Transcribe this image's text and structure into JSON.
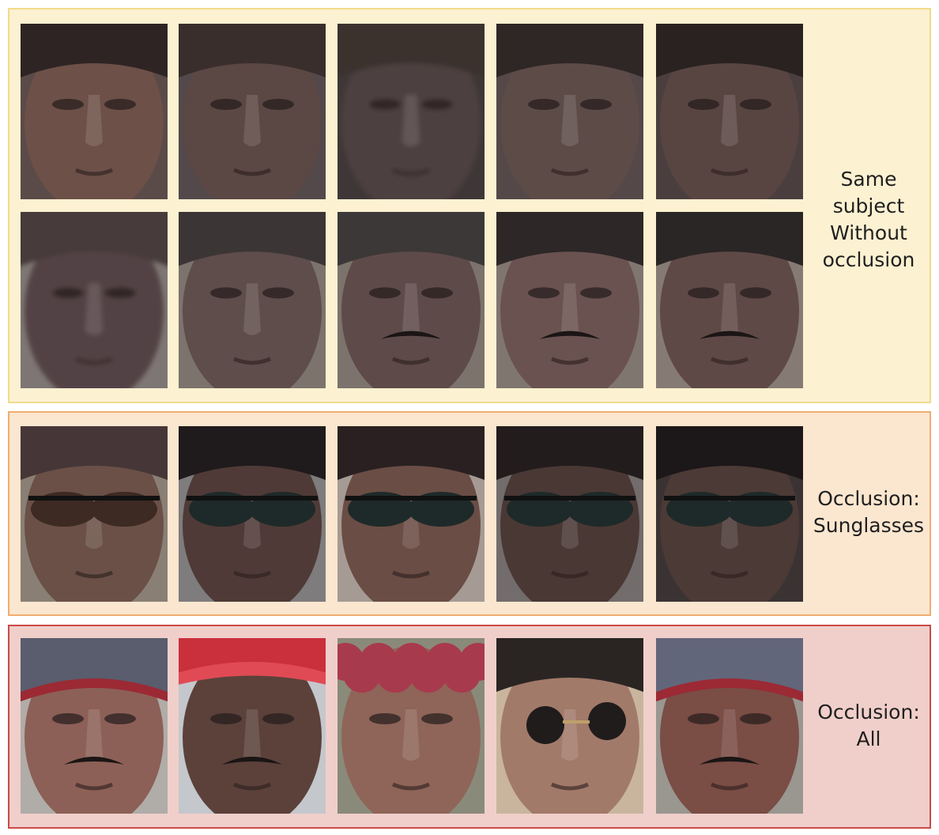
{
  "panels": [
    {
      "label_lines": [
        "Same",
        "subject",
        "Without",
        "occlusion"
      ],
      "rows": [
        {
          "faces": [
            {
              "hair": "#2f2424",
              "skin": "#6d5048",
              "bg": "#5b4b48",
              "style": "plain"
            },
            {
              "hair": "#3a2e2d",
              "skin": "#5b4743",
              "bg": "#53494b",
              "style": "plain"
            },
            {
              "hair": "#3b302f",
              "skin": "#4d403f",
              "bg": "#3f3737",
              "style": "blurry"
            },
            {
              "hair": "#2f2626",
              "skin": "#5d4b48",
              "bg": "#544849",
              "style": "plain"
            },
            {
              "hair": "#2a2221",
              "skin": "#584542",
              "bg": "#4a3f3e",
              "style": "plain"
            }
          ]
        },
        {
          "faces": [
            {
              "hair": "#473a3b",
              "skin": "#524345",
              "bg": "#7e7674",
              "style": "blurry"
            },
            {
              "hair": "#3c3536",
              "skin": "#5f4d4b",
              "bg": "#7d736d",
              "style": "plain"
            },
            {
              "hair": "#3d3838",
              "skin": "#5e4b49",
              "bg": "#7c736c",
              "style": "moustache"
            },
            {
              "hair": "#2d2727",
              "skin": "#6a5250",
              "bg": "#807670",
              "style": "moustache"
            },
            {
              "hair": "#2b2626",
              "skin": "#5f4946",
              "bg": "#857b74",
              "style": "moustache"
            }
          ]
        }
      ]
    },
    {
      "label_lines": [
        "Occlusion:",
        "Sunglasses"
      ],
      "rows": [
        {
          "faces": [
            {
              "hair": "#463637",
              "skin": "#6a5047",
              "bg": "#8a7f74",
              "style": "sunglasses-brown"
            },
            {
              "hair": "#1f1a1b",
              "skin": "#4f3a37",
              "bg": "#7e7c7d",
              "style": "sunglasses"
            },
            {
              "hair": "#2a2021",
              "skin": "#6a4d45",
              "bg": "#a59b94",
              "style": "sunglasses"
            },
            {
              "hair": "#221c1c",
              "skin": "#4a3835",
              "bg": "#726c6c",
              "style": "sunglasses"
            },
            {
              "hair": "#1c1718",
              "skin": "#4c3a36",
              "bg": "#3b3333",
              "style": "sunglasses"
            }
          ]
        }
      ]
    },
    {
      "label_lines": [
        "Occlusion:",
        "All"
      ],
      "rows": [
        {
          "faces": [
            {
              "hair": "#595d6d",
              "skin": "#8c6057",
              "bg": "#b0aca8",
              "style": "beanie"
            },
            {
              "hair": "#c9303c",
              "skin": "#5b413a",
              "bg": "#c4c7cc",
              "style": "cap"
            },
            {
              "hair": "#a83a4d",
              "skin": "#8e6558",
              "bg": "#8a8a7a",
              "style": "curly"
            },
            {
              "hair": "#2a2523",
              "skin": "#a27a6a",
              "bg": "#c9b59e",
              "style": "sunglasses-round"
            },
            {
              "hair": "#62667a",
              "skin": "#7a4d45",
              "bg": "#9a9690",
              "style": "beanie"
            }
          ]
        }
      ]
    }
  ]
}
